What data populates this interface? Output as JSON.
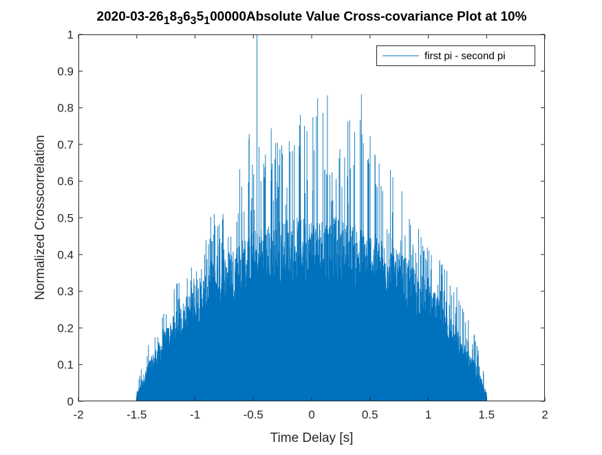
{
  "chart_data": {
    "type": "line",
    "title": {
      "segments": [
        {
          "text": "2020-03-26",
          "sub": false
        },
        {
          "text": "1",
          "sub": true
        },
        {
          "text": "8",
          "sub": false
        },
        {
          "text": "3",
          "sub": true
        },
        {
          "text": "6",
          "sub": false
        },
        {
          "text": "3",
          "sub": true
        },
        {
          "text": "5",
          "sub": false
        },
        {
          "text": "1",
          "sub": true
        },
        {
          "text": "00000Absolute Value Cross-covariance Plot at 10%",
          "sub": false
        }
      ]
    },
    "xlabel": "Time Delay [s]",
    "ylabel": "Normalized Crosscorrelation",
    "xlim": [
      -2,
      2
    ],
    "ylim": [
      0,
      1
    ],
    "xticks": [
      -2,
      -1.5,
      -1,
      -0.5,
      0,
      0.5,
      1,
      1.5,
      2
    ],
    "xtick_labels": [
      "-2",
      "-1.5",
      "-1",
      "-0.5",
      "0",
      "0.5",
      "1",
      "1.5",
      "2"
    ],
    "yticks": [
      0,
      0.1,
      0.2,
      0.3,
      0.4,
      0.5,
      0.6,
      0.7,
      0.8,
      0.9,
      1
    ],
    "ytick_labels": [
      "0",
      "0.1",
      "0.2",
      "0.3",
      "0.4",
      "0.5",
      "0.6",
      "0.7",
      "0.8",
      "0.9",
      "1"
    ],
    "grid": false,
    "legend_position": "top-right",
    "series": [
      {
        "name": "first pi - second pi",
        "color": "#0072bd",
        "x_range": [
          -1.5,
          1.5
        ],
        "description_points": {
          "x": [
            -1.5,
            -1.4,
            -1.3,
            -1.2,
            -1.1,
            -1.0,
            -0.9,
            -0.8,
            -0.7,
            -0.6,
            -0.5,
            -0.4,
            -0.3,
            -0.2,
            -0.1,
            0.0,
            0.1,
            0.2,
            0.3,
            0.4,
            0.5,
            0.6,
            0.7,
            0.8,
            0.9,
            1.0,
            1.1,
            1.2,
            1.3,
            1.4,
            1.5
          ],
          "fill_level": [
            0.02,
            0.09,
            0.14,
            0.19,
            0.23,
            0.27,
            0.3,
            0.33,
            0.35,
            0.37,
            0.39,
            0.4,
            0.41,
            0.42,
            0.42,
            0.42,
            0.42,
            0.42,
            0.41,
            0.4,
            0.39,
            0.37,
            0.35,
            0.33,
            0.3,
            0.27,
            0.23,
            0.19,
            0.14,
            0.09,
            0.02
          ],
          "peak_level": [
            0.05,
            0.16,
            0.24,
            0.3,
            0.36,
            0.41,
            0.48,
            0.55,
            0.62,
            0.68,
            0.76,
            0.86,
            0.83,
            0.8,
            0.8,
            0.8,
            0.88,
            0.78,
            0.76,
            0.9,
            0.74,
            0.7,
            0.62,
            0.57,
            0.52,
            0.45,
            0.4,
            0.35,
            0.28,
            0.2,
            0.05
          ]
        },
        "max_point": {
          "x": -0.47,
          "y": 1.0
        }
      }
    ]
  }
}
